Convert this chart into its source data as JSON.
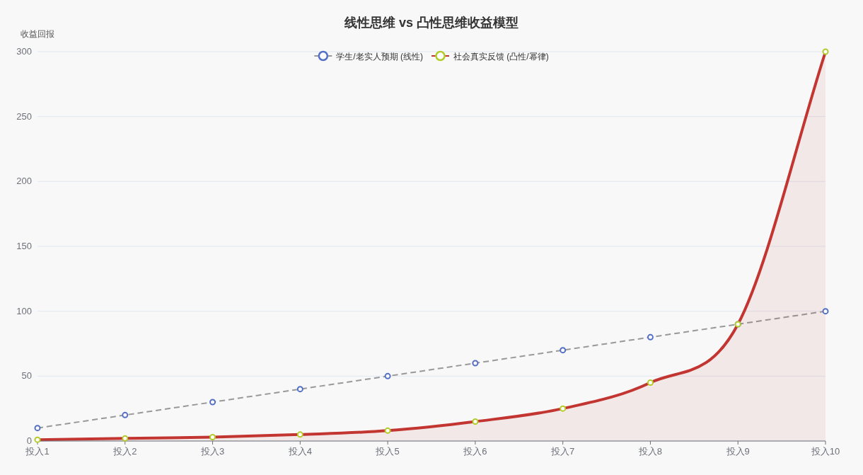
{
  "chart_data": {
    "type": "line",
    "title": "线性思维 vs 凸性思维收益模型",
    "ylabel": "收益回报",
    "categories": [
      "投入1",
      "投入2",
      "投入3",
      "投入4",
      "投入5",
      "投入6",
      "投入7",
      "投入8",
      "投入9",
      "投入10"
    ],
    "ylim": [
      0,
      300
    ],
    "yticks": [
      0,
      50,
      100,
      150,
      200,
      250,
      300
    ],
    "grid": "y",
    "legend": "top",
    "marker": "circle",
    "series": [
      {
        "name": "学生/老实人预期 (线性)",
        "type": "line",
        "line_style": "dashed",
        "color": "#999999",
        "colors": [
          "#5470c6",
          "#5470c6",
          "#5470c6",
          "#5470c6",
          "#5470c6",
          "#5470c6",
          "#5470c6",
          "#5470c6",
          "#5470c6",
          "#5470c6"
        ],
        "values": [
          10,
          20,
          30,
          40,
          50,
          60,
          70,
          80,
          90,
          100
        ]
      },
      {
        "name": "社会真实反馈 (凸性/幂律)",
        "type": "area",
        "line_style": "solid",
        "color": "#c23531",
        "colors": [
          "#b3cc2a",
          "#b3cc2a",
          "#b3cc2a",
          "#b3cc2a",
          "#b3cc2a",
          "#b3cc2a",
          "#b3cc2a",
          "#b3cc2a",
          "#b3cc2a",
          "#b3cc2a"
        ],
        "values": [
          1,
          2,
          3,
          5,
          8,
          15,
          25,
          45,
          90,
          300
        ]
      }
    ]
  }
}
